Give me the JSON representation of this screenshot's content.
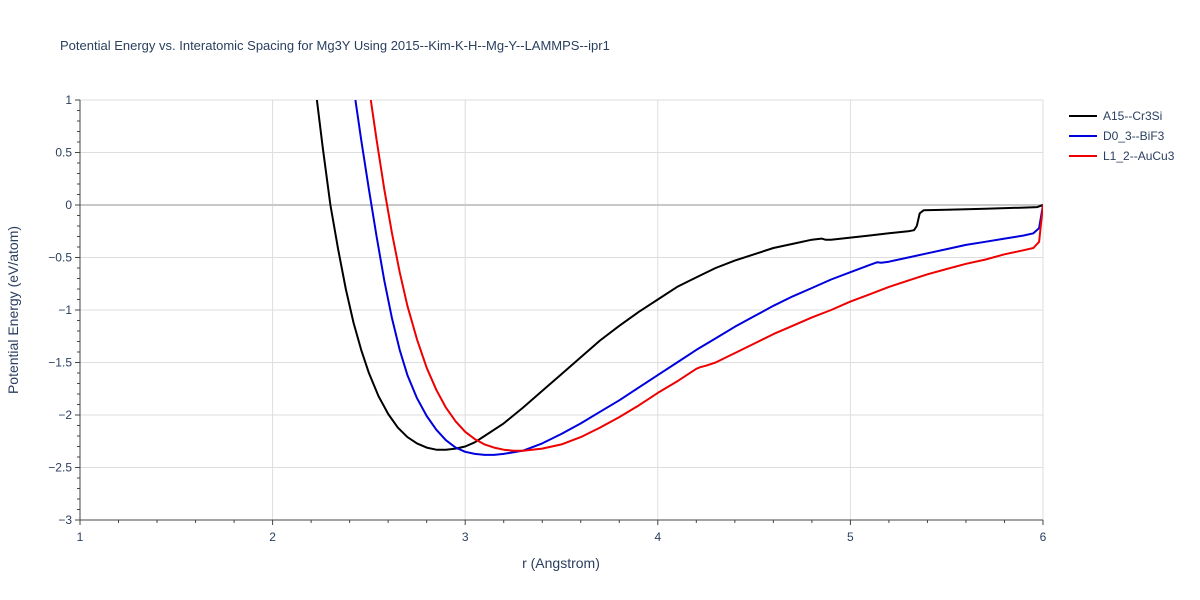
{
  "chart_data": {
    "type": "line",
    "title": "Potential Energy vs. Interatomic Spacing for Mg3Y Using 2015--Kim-K-H--Mg-Y--LAMMPS--ipr1",
    "xlabel": "r (Angstrom)",
    "ylabel": "Potential Energy (eV/atom)",
    "xlim": [
      1,
      6
    ],
    "ylim": [
      -3,
      1
    ],
    "xticks": [
      "1",
      "2",
      "3",
      "4",
      "5",
      "6"
    ],
    "yticks": [
      "1",
      "0.5",
      "0",
      "−0.5",
      "−1",
      "−1.5",
      "−2",
      "−2.5",
      "−3"
    ],
    "grid": true,
    "legend_position": "top-right",
    "series": [
      {
        "name": "A15--Cr3Si",
        "color": "#000000",
        "x": [
          2.23,
          2.26,
          2.3,
          2.34,
          2.38,
          2.42,
          2.46,
          2.5,
          2.55,
          2.6,
          2.65,
          2.7,
          2.75,
          2.8,
          2.85,
          2.9,
          2.95,
          3.0,
          3.05,
          3.1,
          3.2,
          3.3,
          3.4,
          3.5,
          3.6,
          3.7,
          3.8,
          3.9,
          4.0,
          4.1,
          4.2,
          4.3,
          4.4,
          4.5,
          4.6,
          4.7,
          4.8,
          4.85,
          4.87,
          4.9,
          5.0,
          5.1,
          5.2,
          5.3,
          5.33,
          5.345,
          5.36,
          5.38,
          5.5,
          5.7,
          5.9,
          5.97,
          6.0
        ],
        "y": [
          1.0,
          0.55,
          0.0,
          -0.42,
          -0.8,
          -1.12,
          -1.38,
          -1.6,
          -1.82,
          -1.99,
          -2.12,
          -2.21,
          -2.27,
          -2.31,
          -2.33,
          -2.33,
          -2.32,
          -2.3,
          -2.26,
          -2.2,
          -2.08,
          -1.93,
          -1.77,
          -1.61,
          -1.45,
          -1.29,
          -1.15,
          -1.02,
          -0.9,
          -0.78,
          -0.69,
          -0.6,
          -0.53,
          -0.47,
          -0.41,
          -0.37,
          -0.33,
          -0.32,
          -0.33,
          -0.33,
          -0.31,
          -0.29,
          -0.27,
          -0.25,
          -0.24,
          -0.2,
          -0.08,
          -0.05,
          -0.045,
          -0.035,
          -0.025,
          -0.02,
          0.0
        ]
      },
      {
        "name": "D0_3--BiF3",
        "color": "#0000dd",
        "x": [
          2.43,
          2.46,
          2.5,
          2.54,
          2.58,
          2.62,
          2.66,
          2.7,
          2.75,
          2.8,
          2.85,
          2.9,
          2.95,
          3.0,
          3.05,
          3.1,
          3.15,
          3.2,
          3.3,
          3.4,
          3.5,
          3.6,
          3.7,
          3.8,
          3.9,
          4.0,
          4.1,
          4.2,
          4.3,
          4.4,
          4.5,
          4.6,
          4.7,
          4.8,
          4.9,
          5.0,
          5.1,
          5.14,
          5.16,
          5.2,
          5.3,
          5.4,
          5.5,
          5.6,
          5.7,
          5.8,
          5.9,
          5.95,
          5.98,
          6.0
        ],
        "y": [
          1.0,
          0.62,
          0.15,
          -0.3,
          -0.72,
          -1.08,
          -1.38,
          -1.62,
          -1.84,
          -2.01,
          -2.14,
          -2.24,
          -2.31,
          -2.35,
          -2.37,
          -2.38,
          -2.38,
          -2.37,
          -2.34,
          -2.27,
          -2.18,
          -2.08,
          -1.97,
          -1.86,
          -1.74,
          -1.62,
          -1.5,
          -1.38,
          -1.27,
          -1.16,
          -1.06,
          -0.96,
          -0.87,
          -0.79,
          -0.71,
          -0.64,
          -0.57,
          -0.545,
          -0.55,
          -0.54,
          -0.5,
          -0.46,
          -0.42,
          -0.38,
          -0.35,
          -0.32,
          -0.29,
          -0.27,
          -0.22,
          0.0
        ]
      },
      {
        "name": "L1_2--AuCu3",
        "color": "#ee0000",
        "x": [
          2.51,
          2.54,
          2.58,
          2.62,
          2.66,
          2.7,
          2.75,
          2.8,
          2.85,
          2.9,
          2.95,
          3.0,
          3.05,
          3.1,
          3.15,
          3.2,
          3.25,
          3.3,
          3.4,
          3.5,
          3.6,
          3.7,
          3.8,
          3.9,
          4.0,
          4.1,
          4.2,
          4.22,
          4.25,
          4.3,
          4.4,
          4.5,
          4.6,
          4.7,
          4.8,
          4.9,
          5.0,
          5.1,
          5.2,
          5.3,
          5.4,
          5.5,
          5.6,
          5.7,
          5.8,
          5.9,
          5.95,
          5.98,
          6.0
        ],
        "y": [
          1.0,
          0.62,
          0.15,
          -0.27,
          -0.64,
          -0.96,
          -1.28,
          -1.55,
          -1.76,
          -1.93,
          -2.06,
          -2.16,
          -2.23,
          -2.28,
          -2.31,
          -2.33,
          -2.34,
          -2.34,
          -2.32,
          -2.28,
          -2.21,
          -2.12,
          -2.02,
          -1.91,
          -1.79,
          -1.68,
          -1.56,
          -1.545,
          -1.53,
          -1.5,
          -1.41,
          -1.32,
          -1.23,
          -1.15,
          -1.07,
          -1.0,
          -0.92,
          -0.85,
          -0.78,
          -0.72,
          -0.66,
          -0.61,
          -0.56,
          -0.52,
          -0.47,
          -0.43,
          -0.41,
          -0.35,
          0.0
        ]
      }
    ]
  }
}
